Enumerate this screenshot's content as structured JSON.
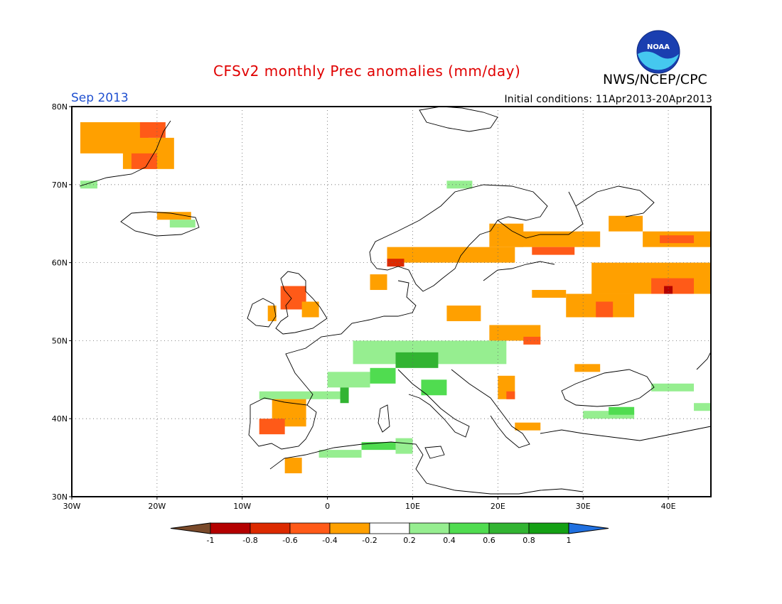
{
  "title": "CFSv2 monthly Prec anomalies (mm/day)",
  "org": "NWS/NCEP/CPC",
  "month": "Sep 2013",
  "initial_conditions": "Initial conditions: 11Apr2013-20Apr2013",
  "logo_text": "NOAA",
  "map": {
    "lon_range": [
      -30,
      45
    ],
    "lat_range": [
      30,
      80
    ],
    "lat_ticks": [
      "30N",
      "40N",
      "50N",
      "60N",
      "70N",
      "80N"
    ],
    "lon_ticks": [
      "30W",
      "20W",
      "10W",
      "0",
      "10E",
      "20E",
      "30E",
      "40E"
    ],
    "grid": "dotted"
  },
  "colorbar": {
    "labels": [
      "-1",
      "-0.8",
      "-0.6",
      "-0.4",
      "-0.2",
      "0.2",
      "0.4",
      "0.6",
      "0.8",
      "1"
    ],
    "colors": [
      "#7a4a2a",
      "#b40000",
      "#dc2a00",
      "#ff5a18",
      "#ffa000",
      "#ffffff",
      "#96ee90",
      "#50dc50",
      "#32b432",
      "#14a014",
      "#2070e0"
    ]
  },
  "anomaly_cells": [
    {
      "lon": -29,
      "lat": 74,
      "w": 8,
      "h": 4,
      "c": 4
    },
    {
      "lon": -24,
      "lat": 72,
      "w": 6,
      "h": 4,
      "c": 4
    },
    {
      "lon": -22,
      "lat": 76,
      "w": 3,
      "h": 2,
      "c": 3
    },
    {
      "lon": -23,
      "lat": 72,
      "w": 3,
      "h": 2,
      "c": 3
    },
    {
      "lon": -29,
      "lat": 69.5,
      "w": 2,
      "h": 1,
      "c": 6
    },
    {
      "lon": -20,
      "lat": 65.5,
      "w": 4,
      "h": 1,
      "c": 4
    },
    {
      "lon": -18.5,
      "lat": 64.5,
      "w": 3,
      "h": 1,
      "c": 6
    },
    {
      "lon": 7,
      "lat": 60,
      "w": 15,
      "h": 2,
      "c": 4
    },
    {
      "lon": 7,
      "lat": 59.5,
      "w": 2,
      "h": 1,
      "c": 2
    },
    {
      "lon": 19,
      "lat": 62,
      "w": 4,
      "h": 3,
      "c": 4
    },
    {
      "lon": 22,
      "lat": 62,
      "w": 10,
      "h": 2,
      "c": 4
    },
    {
      "lon": 24,
      "lat": 61,
      "w": 5,
      "h": 1,
      "c": 3
    },
    {
      "lon": 33,
      "lat": 64,
      "w": 4,
      "h": 2,
      "c": 4
    },
    {
      "lon": 37,
      "lat": 62,
      "w": 8,
      "h": 2,
      "c": 4
    },
    {
      "lon": 39,
      "lat": 62.5,
      "w": 4,
      "h": 1,
      "c": 3
    },
    {
      "lon": 31,
      "lat": 56,
      "w": 14,
      "h": 4,
      "c": 4
    },
    {
      "lon": 38,
      "lat": 56,
      "w": 5,
      "h": 2,
      "c": 3
    },
    {
      "lon": 39.5,
      "lat": 56,
      "w": 1,
      "h": 1,
      "c": 1
    },
    {
      "lon": 28,
      "lat": 53,
      "w": 8,
      "h": 3,
      "c": 4
    },
    {
      "lon": 31.5,
      "lat": 53,
      "w": 2,
      "h": 2,
      "c": 3
    },
    {
      "lon": 24,
      "lat": 55.5,
      "w": 4,
      "h": 1,
      "c": 4
    },
    {
      "lon": 14,
      "lat": 52.5,
      "w": 4,
      "h": 2,
      "c": 4
    },
    {
      "lon": 19,
      "lat": 50,
      "w": 6,
      "h": 2,
      "c": 4
    },
    {
      "lon": 23,
      "lat": 49.5,
      "w": 2,
      "h": 1,
      "c": 3
    },
    {
      "lon": 5,
      "lat": 56.5,
      "w": 2,
      "h": 2,
      "c": 4
    },
    {
      "lon": -5.5,
      "lat": 54,
      "w": 3,
      "h": 3,
      "c": 3
    },
    {
      "lon": -3,
      "lat": 53,
      "w": 2,
      "h": 2,
      "c": 4
    },
    {
      "lon": -7,
      "lat": 52.5,
      "w": 1,
      "h": 2,
      "c": 4
    },
    {
      "lon": -6.5,
      "lat": 39,
      "w": 4,
      "h": 4,
      "c": 4
    },
    {
      "lon": -8,
      "lat": 38,
      "w": 3,
      "h": 2,
      "c": 3
    },
    {
      "lon": -5,
      "lat": 33,
      "w": 2,
      "h": 2,
      "c": 4
    },
    {
      "lon": 20,
      "lat": 42.5,
      "w": 2,
      "h": 3,
      "c": 4
    },
    {
      "lon": 21,
      "lat": 42.5,
      "w": 1,
      "h": 1,
      "c": 3
    },
    {
      "lon": 22,
      "lat": 38.5,
      "w": 3,
      "h": 1,
      "c": 4
    },
    {
      "lon": 29,
      "lat": 46,
      "w": 3,
      "h": 1,
      "c": 4
    },
    {
      "lon": 3,
      "lat": 47,
      "w": 18,
      "h": 3,
      "c": 6
    },
    {
      "lon": 8,
      "lat": 46.5,
      "w": 5,
      "h": 2,
      "c": 8
    },
    {
      "lon": 5,
      "lat": 44.5,
      "w": 3,
      "h": 2,
      "c": 7
    },
    {
      "lon": 11,
      "lat": 43,
      "w": 3,
      "h": 2,
      "c": 7
    },
    {
      "lon": -8,
      "lat": 42.5,
      "w": 10,
      "h": 1,
      "c": 6
    },
    {
      "lon": 0,
      "lat": 44,
      "w": 5,
      "h": 2,
      "c": 6
    },
    {
      "lon": 1.5,
      "lat": 42,
      "w": 1,
      "h": 2,
      "c": 8
    },
    {
      "lon": 4,
      "lat": 36,
      "w": 6,
      "h": 1,
      "c": 7
    },
    {
      "lon": -1,
      "lat": 35,
      "w": 5,
      "h": 1,
      "c": 6
    },
    {
      "lon": 8,
      "lat": 35.5,
      "w": 2,
      "h": 2,
      "c": 6
    },
    {
      "lon": 30,
      "lat": 40,
      "w": 6,
      "h": 1,
      "c": 6
    },
    {
      "lon": 33,
      "lat": 40.5,
      "w": 3,
      "h": 1,
      "c": 7
    },
    {
      "lon": 38,
      "lat": 43.5,
      "w": 5,
      "h": 1,
      "c": 6
    },
    {
      "lon": 14,
      "lat": 69.5,
      "w": 3,
      "h": 1,
      "c": 6
    },
    {
      "lon": 43,
      "lat": 41,
      "w": 2,
      "h": 1,
      "c": 6
    }
  ]
}
